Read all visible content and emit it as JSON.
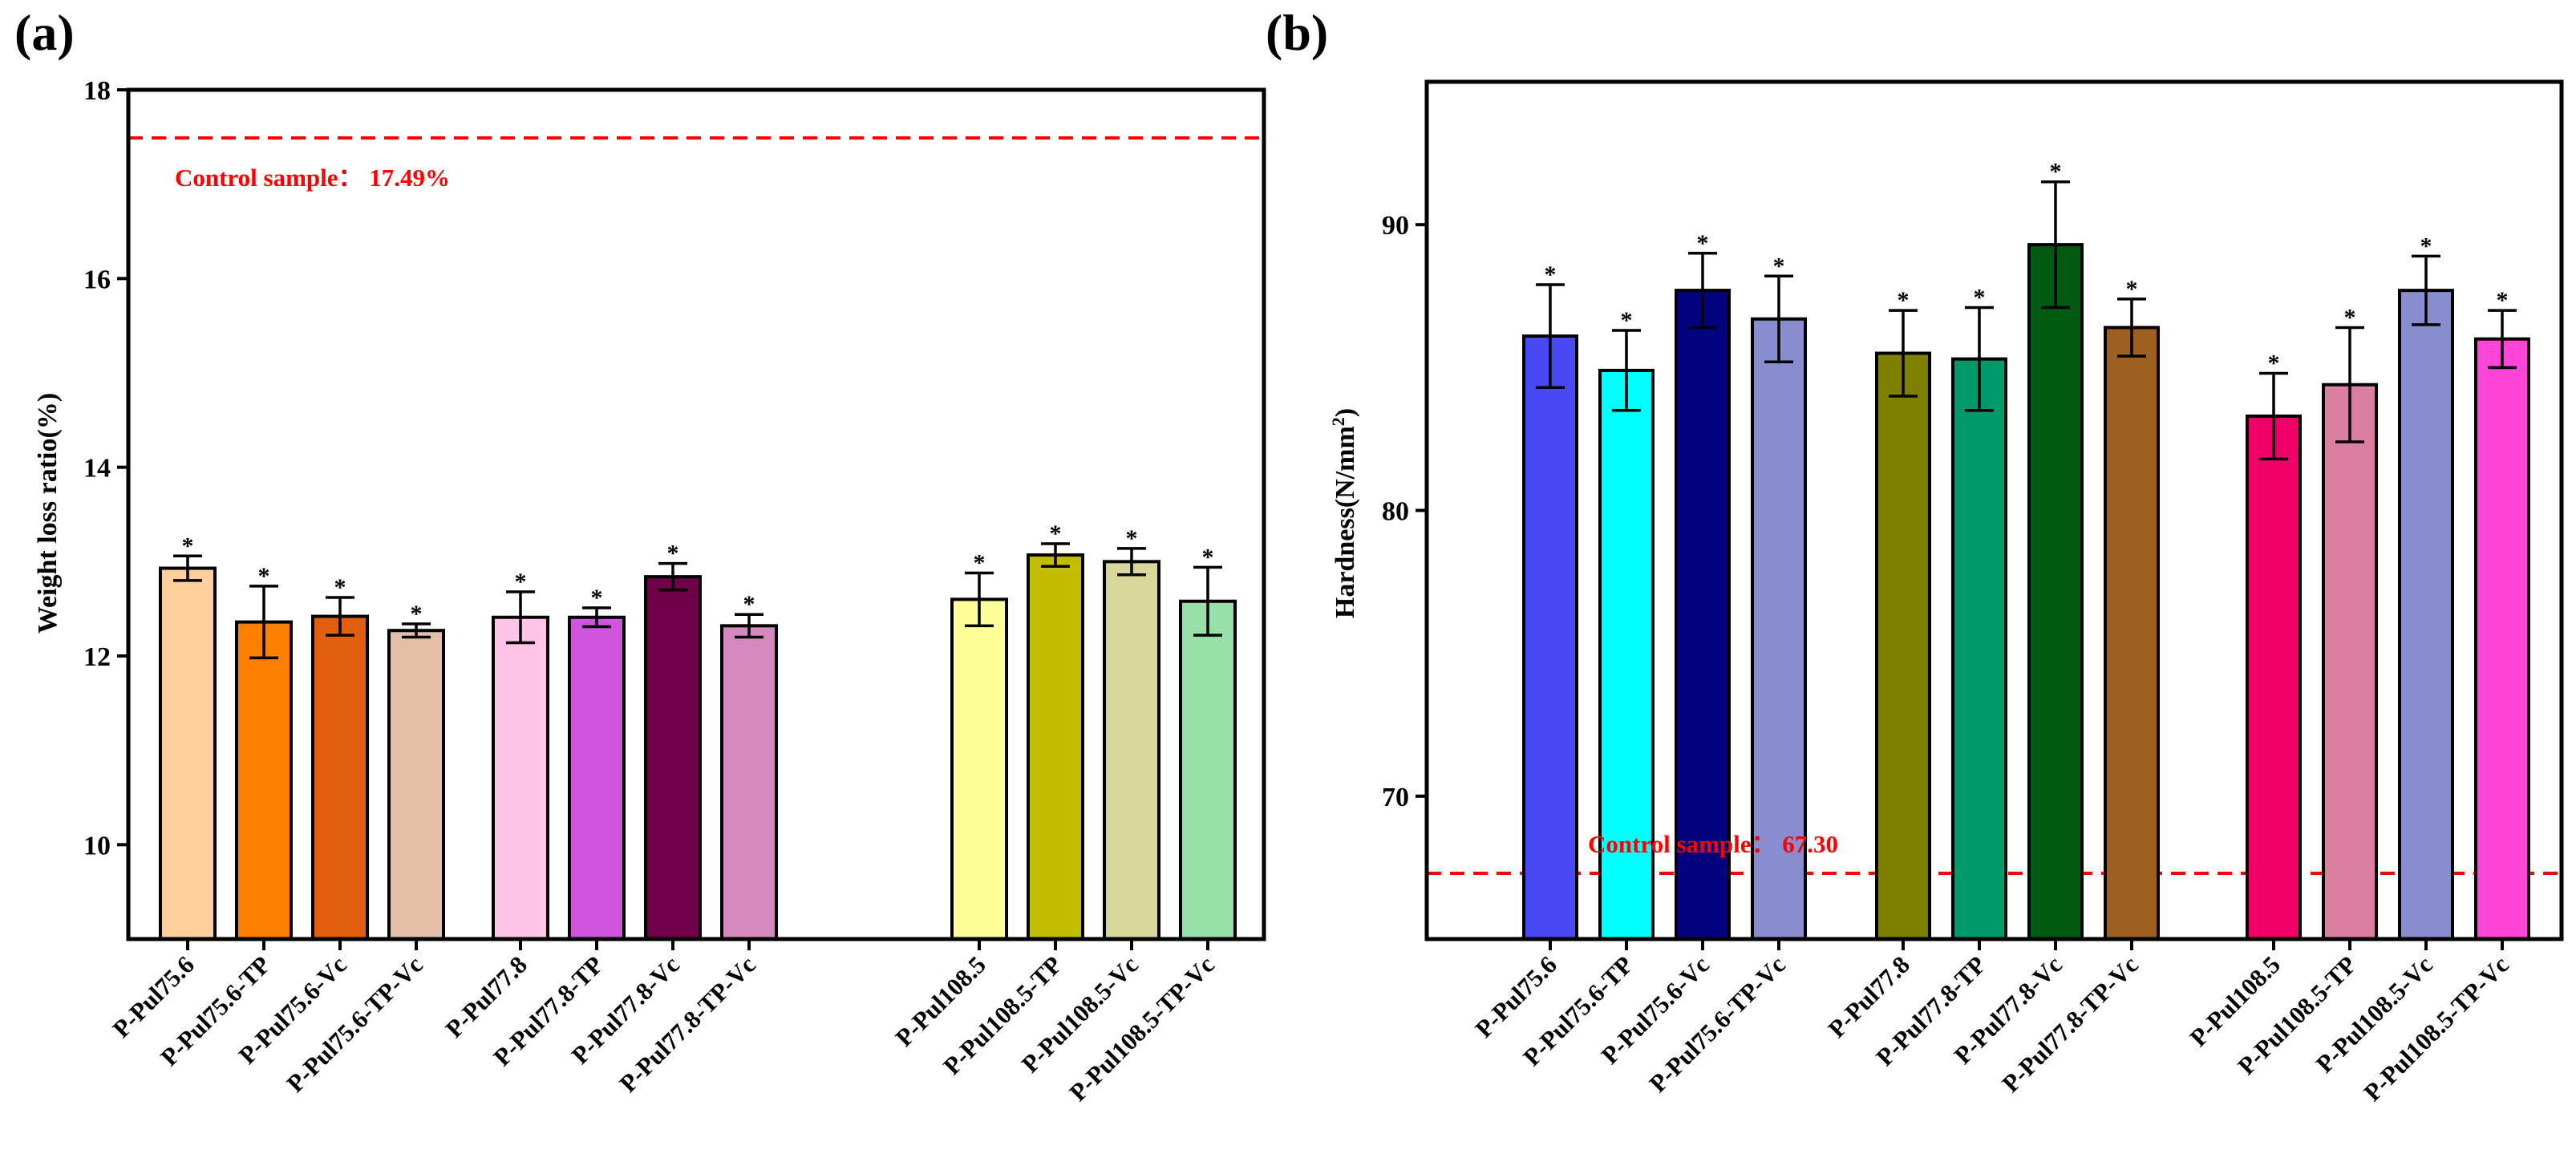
{
  "chart_data": [
    {
      "type": "bar",
      "panel_label": "(a)",
      "title": "",
      "xlabel": "",
      "ylabel": "Weight loss ratio(%)",
      "ylim": [
        9,
        18
      ],
      "yticks": [
        "10",
        "12",
        "14",
        "16",
        "18"
      ],
      "groups": [
        {
          "bars": [
            {
              "label": "P-Pul75.6",
              "value": 12.93,
              "error": 0.13,
              "color": "#FFCF9C",
              "mark": "*"
            },
            {
              "label": "P-Pul75.6-TP",
              "value": 12.36,
              "error": 0.38,
              "color": "#FF8000",
              "mark": "*"
            },
            {
              "label": "P-Pul75.6-Vc",
              "value": 12.42,
              "error": 0.2,
              "color": "#E06010",
              "mark": "*"
            },
            {
              "label": "P-Pul75.6-TP-Vc",
              "value": 12.27,
              "error": 0.07,
              "color": "#E2BFA8",
              "mark": "*"
            }
          ]
        },
        {
          "bars": [
            {
              "label": "P-Pul77.8",
              "value": 12.41,
              "error": 0.27,
              "color": "#FFC4E6",
              "mark": "*"
            },
            {
              "label": "P-Pul77.8-TP",
              "value": 12.41,
              "error": 0.1,
              "color": "#D055DD",
              "mark": "*"
            },
            {
              "label": "P-Pul77.8-Vc",
              "value": 12.84,
              "error": 0.14,
              "color": "#6E0048",
              "mark": "*"
            },
            {
              "label": "P-Pul77.8-TP-Vc",
              "value": 12.32,
              "error": 0.12,
              "color": "#D48ABF",
              "mark": "*"
            }
          ]
        },
        {
          "bars": [
            {
              "label": "P-Pul108.5",
              "value": 12.6,
              "error": 0.28,
              "color": "#FFFF9A",
              "mark": "*"
            },
            {
              "label": "P-Pul108.5-TP",
              "value": 13.07,
              "error": 0.12,
              "color": "#C4BE00",
              "mark": "*"
            },
            {
              "label": "P-Pul108.5-Vc",
              "value": 13.0,
              "error": 0.14,
              "color": "#D8D69A",
              "mark": "*"
            },
            {
              "label": "P-Pul108.5-TP-Vc",
              "value": 12.58,
              "error": 0.36,
              "color": "#99DFAA",
              "mark": "*"
            }
          ]
        }
      ],
      "reference_line": {
        "value": 17.49,
        "label": "Control sample： 17.49%",
        "color": "#FF0000"
      }
    },
    {
      "type": "bar",
      "panel_label": "(b)",
      "title": "",
      "xlabel": "",
      "ylabel": "Hardness(N/mm",
      "ylabel_superscript": "2",
      "ylabel_close": ")",
      "ylim": [
        65,
        95
      ],
      "yticks": [
        "70",
        "80",
        "90"
      ],
      "groups": [
        {
          "bars": [
            {
              "label": "P-Pul75.6",
              "value": 86.1,
              "error": 1.8,
              "color": "#4A4AF5",
              "mark": "*"
            },
            {
              "label": "P-Pul75.6-TP",
              "value": 84.9,
              "error": 1.4,
              "color": "#00FFFF",
              "mark": "*"
            },
            {
              "label": "P-Pul75.6-Vc",
              "value": 87.7,
              "error": 1.3,
              "color": "#03037F",
              "mark": "*"
            },
            {
              "label": "P-Pul75.6-TP-Vc",
              "value": 86.7,
              "error": 1.5,
              "color": "#8A8CD0",
              "mark": "*"
            }
          ]
        },
        {
          "bars": [
            {
              "label": "P-Pul77.8",
              "value": 85.5,
              "error": 1.5,
              "color": "#7F7F00",
              "mark": "*"
            },
            {
              "label": "P-Pul77.8-TP",
              "value": 85.3,
              "error": 1.8,
              "color": "#00996A",
              "mark": "*"
            },
            {
              "label": "P-Pul77.8-Vc",
              "value": 89.3,
              "error": 2.2,
              "color": "#005A12",
              "mark": "*"
            },
            {
              "label": "P-Pul77.8-TP-Vc",
              "value": 86.4,
              "error": 1.0,
              "color": "#9E6020",
              "mark": "*"
            }
          ]
        },
        {
          "bars": [
            {
              "label": "P-Pul108.5",
              "value": 83.3,
              "error": 1.5,
              "color": "#F00066",
              "mark": "*"
            },
            {
              "label": "P-Pul108.5-TP",
              "value": 84.4,
              "error": 2.0,
              "color": "#DA7FA0",
              "mark": "*"
            },
            {
              "label": "P-Pul108.5-Vc",
              "value": 87.7,
              "error": 1.2,
              "color": "#8A8CD0",
              "mark": "*"
            },
            {
              "label": "P-Pul108.5-TP-Vc",
              "value": 86.0,
              "error": 1.0,
              "color": "#FF44D8",
              "mark": "*"
            }
          ]
        }
      ],
      "reference_line": {
        "value": 67.3,
        "label": "Control sample： 67.30",
        "color": "#FF0000"
      }
    }
  ]
}
